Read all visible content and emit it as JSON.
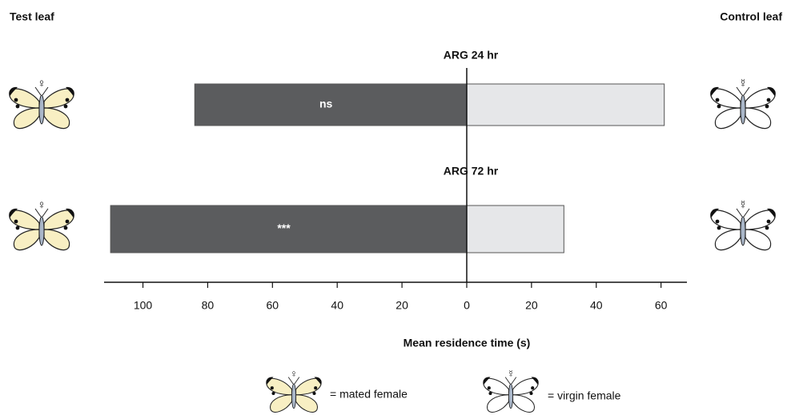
{
  "chart_data": {
    "type": "diverging-bar",
    "categories": [
      "ARG 24 hr",
      "ARG 72 hr"
    ],
    "series": [
      {
        "name": "Test leaf",
        "color": "#5b5c5e",
        "values": [
          -84,
          -110
        ]
      },
      {
        "name": "Control leaf",
        "color": "#e6e7e9",
        "values": [
          61,
          30
        ]
      }
    ],
    "annotations": [
      "ns",
      "***"
    ],
    "xlabel": "Mean residence time (s)",
    "xlim": [
      -112,
      68
    ],
    "xticks": [
      {
        "value": -100,
        "label": "100"
      },
      {
        "value": -80,
        "label": "80"
      },
      {
        "value": -60,
        "label": "60"
      },
      {
        "value": -40,
        "label": "40"
      },
      {
        "value": -20,
        "label": "20"
      },
      0,
      20,
      40,
      60
    ],
    "symbols": {
      "mated": "♀",
      "virgin": "☿"
    },
    "legend": [
      "= mated female",
      "= virgin female"
    ]
  }
}
